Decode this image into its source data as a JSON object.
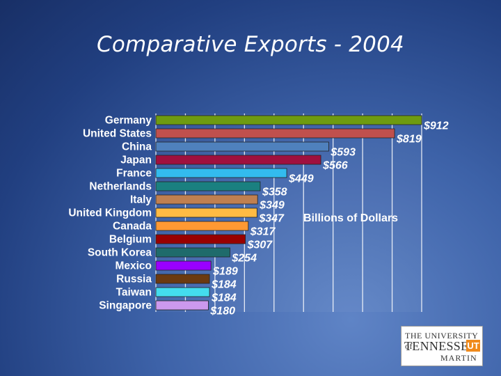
{
  "title": "Comparative Exports - 2004",
  "units_label": "Billions of Dollars",
  "logo": {
    "line1": "THE UNIVERSITY of",
    "line2": "TENNESSEE",
    "mark": "UT",
    "line3": "MARTIN"
  },
  "chart_data": {
    "type": "bar",
    "orientation": "horizontal",
    "title": "Comparative Exports - 2004",
    "xlabel": "Billions of Dollars",
    "categories": [
      "Germany",
      "United States",
      "China",
      "Japan",
      "France",
      "Netherlands",
      "Italy",
      "United Kingdom",
      "Canada",
      "Belgium",
      "South Korea",
      "Mexico",
      "Russia",
      "Taiwan",
      "Singapore"
    ],
    "values": [
      912,
      819,
      593,
      566,
      449,
      358,
      349,
      347,
      317,
      307,
      254,
      189,
      184,
      184,
      180
    ],
    "value_labels": [
      "$912",
      "$819",
      "$593",
      "$566",
      "$449",
      "$358",
      "$349",
      "$347",
      "$317",
      "$307",
      "$254",
      "$189",
      "$184",
      "$184",
      "$180"
    ],
    "colors": [
      "#6e9b10",
      "#c0504d",
      "#4f81bd",
      "#a0103e",
      "#33bbee",
      "#1a8080",
      "#c08050",
      "#ffbb44",
      "#ff9933",
      "#990000",
      "#1f6b6b",
      "#9900ff",
      "#6b3a10",
      "#44ddee",
      "#cc99ee"
    ],
    "xlim": [
      0,
      912
    ],
    "grid": true
  }
}
